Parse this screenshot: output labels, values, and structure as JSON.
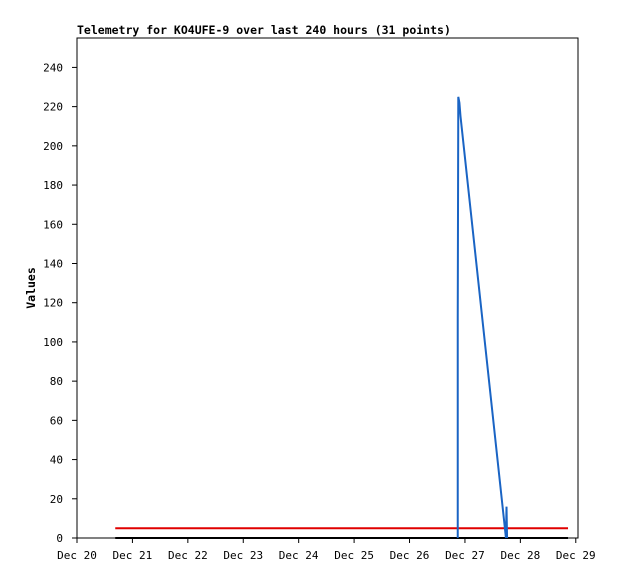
{
  "chart_data": {
    "type": "line",
    "title": "Telemetry for KO4UFE-9 over last 240 hours (31 points)",
    "y_label": "Values",
    "xlim": [
      20,
      29.04
    ],
    "ylim": [
      0,
      255
    ],
    "xticks": [
      {
        "value": 20,
        "label": "Dec 20"
      },
      {
        "value": 21,
        "label": "Dec 21"
      },
      {
        "value": 22,
        "label": "Dec 22"
      },
      {
        "value": 23,
        "label": "Dec 23"
      },
      {
        "value": 24,
        "label": "Dec 24"
      },
      {
        "value": 25,
        "label": "Dec 25"
      },
      {
        "value": 26,
        "label": "Dec 26"
      },
      {
        "value": 27,
        "label": "Dec 27"
      },
      {
        "value": 28,
        "label": "Dec 28"
      },
      {
        "value": 29,
        "label": "Dec 29"
      }
    ],
    "yticks": [
      0,
      20,
      40,
      60,
      80,
      100,
      120,
      140,
      160,
      180,
      200,
      220,
      240
    ],
    "series": [
      {
        "color": "#000000",
        "x": [
          20.69,
          28.86
        ],
        "values": [
          0,
          0
        ]
      },
      {
        "color": "#e00000",
        "x": [
          20.69,
          28.86
        ],
        "values": [
          5,
          5
        ]
      },
      {
        "color": "#1a64c4",
        "x": [
          26.87,
          26.87,
          26.88,
          26.9,
          26.92,
          27.74,
          27.75,
          27.76
        ],
        "values": [
          0,
          112,
          225,
          222,
          215,
          0,
          16,
          0
        ]
      }
    ]
  }
}
